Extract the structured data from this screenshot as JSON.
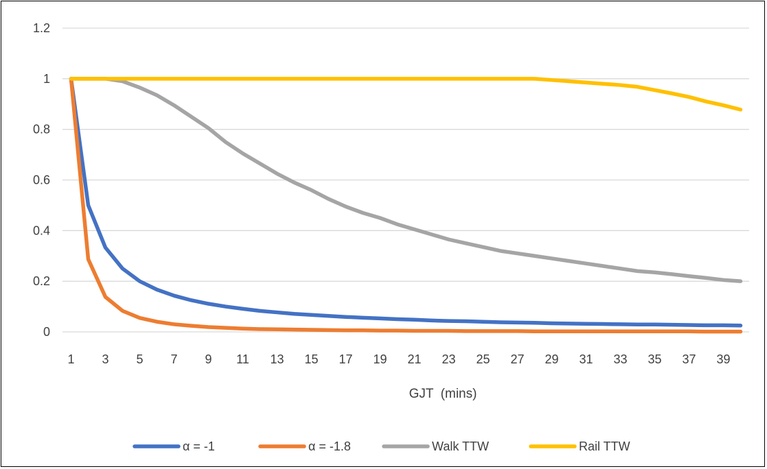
{
  "chart_data": {
    "type": "line",
    "title": "",
    "xlabel": "GJT  (mins)",
    "ylabel": "",
    "x": [
      1,
      2,
      3,
      4,
      5,
      6,
      7,
      8,
      9,
      10,
      11,
      12,
      13,
      14,
      15,
      16,
      17,
      18,
      19,
      20,
      21,
      22,
      23,
      24,
      25,
      26,
      27,
      28,
      29,
      30,
      31,
      32,
      33,
      34,
      35,
      36,
      37,
      38,
      39,
      40
    ],
    "x_tick_labels": [
      "1",
      "3",
      "5",
      "7",
      "9",
      "11",
      "13",
      "15",
      "17",
      "19",
      "21",
      "23",
      "25",
      "27",
      "29",
      "31",
      "33",
      "35",
      "37",
      "39"
    ],
    "y_tick_labels": [
      "0",
      "0.2",
      "0.4",
      "0.6",
      "0.8",
      "1",
      "1.2"
    ],
    "ylim": [
      0,
      1.2
    ],
    "grid": "horizontal",
    "legend_position": "bottom",
    "series": [
      {
        "name": "α = -1",
        "color": "#4472C4",
        "values": [
          1.0,
          0.5,
          0.333,
          0.25,
          0.2,
          0.167,
          0.143,
          0.125,
          0.111,
          0.1,
          0.091,
          0.083,
          0.077,
          0.071,
          0.067,
          0.063,
          0.059,
          0.056,
          0.053,
          0.05,
          0.048,
          0.045,
          0.043,
          0.042,
          0.04,
          0.038,
          0.037,
          0.036,
          0.034,
          0.033,
          0.032,
          0.031,
          0.03,
          0.029,
          0.029,
          0.028,
          0.027,
          0.026,
          0.026,
          0.025
        ]
      },
      {
        "name": "α = -1.8",
        "color": "#ED7D31",
        "values": [
          1.0,
          0.287,
          0.138,
          0.083,
          0.055,
          0.04,
          0.03,
          0.024,
          0.019,
          0.016,
          0.013,
          0.011,
          0.01,
          0.009,
          0.008,
          0.007,
          0.006,
          0.006,
          0.005,
          0.005,
          0.004,
          0.004,
          0.004,
          0.003,
          0.003,
          0.003,
          0.003,
          0.002,
          0.002,
          0.002,
          0.002,
          0.002,
          0.002,
          0.002,
          0.002,
          0.002,
          0.002,
          0.001,
          0.001,
          0.001
        ]
      },
      {
        "name": "Walk TTW",
        "color": "#A5A5A5",
        "values": [
          1.0,
          1.0,
          1.0,
          0.99,
          0.965,
          0.935,
          0.895,
          0.85,
          0.805,
          0.75,
          0.705,
          0.665,
          0.625,
          0.59,
          0.56,
          0.525,
          0.495,
          0.47,
          0.45,
          0.425,
          0.405,
          0.385,
          0.365,
          0.35,
          0.335,
          0.32,
          0.31,
          0.3,
          0.29,
          0.28,
          0.27,
          0.26,
          0.25,
          0.24,
          0.235,
          0.228,
          0.22,
          0.213,
          0.205,
          0.2
        ]
      },
      {
        "name": "Rail TTW",
        "color": "#FFC000",
        "values": [
          1.0,
          1.0,
          1.0,
          1.0,
          1.0,
          1.0,
          1.0,
          1.0,
          1.0,
          1.0,
          1.0,
          1.0,
          1.0,
          1.0,
          1.0,
          1.0,
          1.0,
          1.0,
          1.0,
          1.0,
          1.0,
          1.0,
          1.0,
          1.0,
          1.0,
          1.0,
          1.0,
          1.0,
          0.995,
          0.99,
          0.985,
          0.98,
          0.975,
          0.968,
          0.955,
          0.942,
          0.928,
          0.91,
          0.895,
          0.878
        ]
      }
    ]
  }
}
